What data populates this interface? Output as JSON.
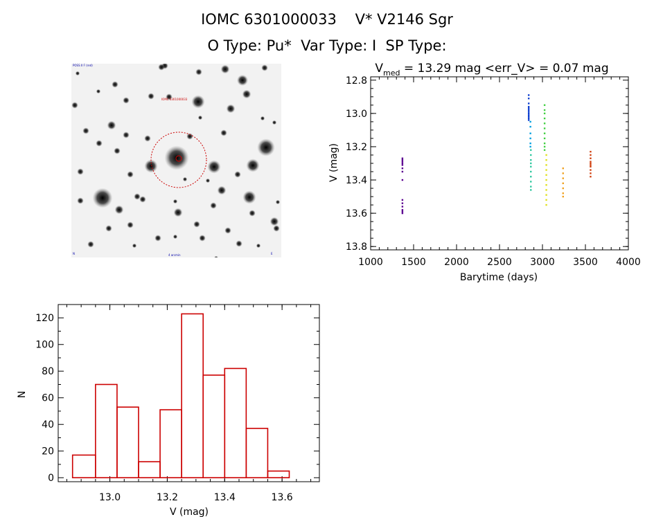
{
  "header": {
    "title_line1": "IOMC 6301000033    V* V2146 Sgr",
    "title_line2": "O Type: Pu*  Var Type: I  SP Type:"
  },
  "image_panel": {
    "corner_tl": "POSS II F (red)",
    "marker_label": "IOMC 6301000033",
    "corner_bl": "N",
    "corner_bc": "4 arcmin",
    "corner_br": "E"
  },
  "chart_data": [
    {
      "type": "scatter",
      "title_main": "V",
      "title_sub": "med",
      "title_rest": " = 13.29 mag <err_V> = 0.07 mag",
      "xlabel": "Barytime (days)",
      "ylabel": "V (mag)",
      "xlim": [
        1000,
        4000
      ],
      "ylim": [
        13.82,
        12.78
      ],
      "y_inverted": true,
      "xticks": [
        1000,
        1500,
        2000,
        2500,
        3000,
        3500,
        4000
      ],
      "yticks": [
        12.8,
        13.0,
        13.2,
        13.4,
        13.6,
        13.8
      ],
      "series": [
        {
          "color": "#5a0090",
          "x": 1370,
          "y": [
            13.27,
            13.28,
            13.29,
            13.3,
            13.31,
            13.33,
            13.35,
            13.4,
            13.52,
            13.54,
            13.56,
            13.58,
            13.59,
            13.6
          ]
        },
        {
          "color": "#1040d0",
          "x": 2840,
          "y": [
            12.89,
            12.91,
            12.94,
            12.96,
            12.97,
            12.98,
            12.99,
            13.0,
            13.01,
            13.02,
            13.03,
            13.04
          ]
        },
        {
          "color": "#00a0e0",
          "x": 2860,
          "y": [
            13.05,
            13.08,
            13.12,
            13.15,
            13.18,
            13.2
          ]
        },
        {
          "color": "#30c8a0",
          "x": 2865,
          "y": [
            13.22,
            13.25,
            13.28,
            13.3,
            13.32,
            13.35,
            13.38,
            13.41,
            13.44,
            13.46
          ]
        },
        {
          "color": "#40d040",
          "x": 3025,
          "y": [
            12.95,
            12.98,
            13.0,
            13.03,
            13.06,
            13.09,
            13.12,
            13.15,
            13.18,
            13.2,
            13.22
          ]
        },
        {
          "color": "#e0e020",
          "x": 3045,
          "y": [
            13.25,
            13.28,
            13.31,
            13.34,
            13.37,
            13.4,
            13.43,
            13.46,
            13.49,
            13.52,
            13.55
          ]
        },
        {
          "color": "#f0a020",
          "x": 3240,
          "y": [
            13.33,
            13.36,
            13.39,
            13.42,
            13.45,
            13.48,
            13.5
          ]
        },
        {
          "color": "#d04010",
          "x": 3560,
          "y": [
            13.23,
            13.25,
            13.27,
            13.29,
            13.3,
            13.31,
            13.32,
            13.34,
            13.36,
            13.38
          ]
        }
      ]
    },
    {
      "type": "bar",
      "title": "",
      "xlabel": "V (mag)",
      "ylabel": "N",
      "xlim": [
        12.82,
        13.73
      ],
      "ylim": [
        -3,
        130
      ],
      "xticks": [
        13.0,
        13.2,
        13.4,
        13.6
      ],
      "yticks": [
        0,
        20,
        40,
        60,
        80,
        100,
        120
      ],
      "bin_edges": [
        12.87,
        12.95,
        13.025,
        13.1,
        13.175,
        13.25,
        13.325,
        13.4,
        13.475,
        13.55,
        13.625
      ],
      "values": [
        17,
        70,
        53,
        12,
        51,
        123,
        77,
        82,
        37,
        5
      ],
      "bar_color": "#cc0000"
    }
  ]
}
